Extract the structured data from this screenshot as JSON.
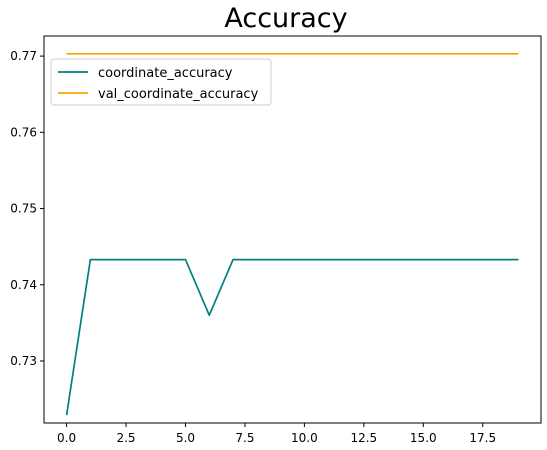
{
  "chart_data": {
    "type": "line",
    "title": "Accuracy",
    "xlabel": "",
    "ylabel": "",
    "x": [
      0,
      1,
      2,
      3,
      4,
      5,
      6,
      7,
      8,
      9,
      10,
      11,
      12,
      13,
      14,
      15,
      16,
      17,
      18,
      19
    ],
    "series": [
      {
        "name": "coordinate_accuracy",
        "color": "#008080",
        "values": [
          0.7229,
          0.7433,
          0.7433,
          0.7433,
          0.7433,
          0.7433,
          0.736,
          0.7433,
          0.7433,
          0.7433,
          0.7433,
          0.7433,
          0.7433,
          0.7433,
          0.7433,
          0.7433,
          0.7433,
          0.7433,
          0.7433,
          0.7433
        ]
      },
      {
        "name": "val_coordinate_accuracy",
        "color": "#FFA500",
        "values": [
          0.7703,
          0.7703,
          0.7703,
          0.7703,
          0.7703,
          0.7703,
          0.7703,
          0.7703,
          0.7703,
          0.7703,
          0.7703,
          0.7703,
          0.7703,
          0.7703,
          0.7703,
          0.7703,
          0.7703,
          0.7703,
          0.7703,
          0.7703
        ]
      }
    ],
    "xticks": [
      0.0,
      2.5,
      5.0,
      7.5,
      10.0,
      12.5,
      15.0,
      17.5
    ],
    "xtick_labels": [
      "0.0",
      "2.5",
      "5.0",
      "7.5",
      "10.0",
      "12.5",
      "15.0",
      "17.5"
    ],
    "yticks": [
      0.73,
      0.74,
      0.75,
      0.76,
      0.77
    ],
    "ytick_labels": [
      "0.73",
      "0.74",
      "0.75",
      "0.76",
      "0.77"
    ],
    "xlim": [
      -0.95,
      19.95
    ],
    "ylim": [
      0.72186,
      0.77264
    ],
    "grid": false,
    "legend_position": "top-left"
  }
}
